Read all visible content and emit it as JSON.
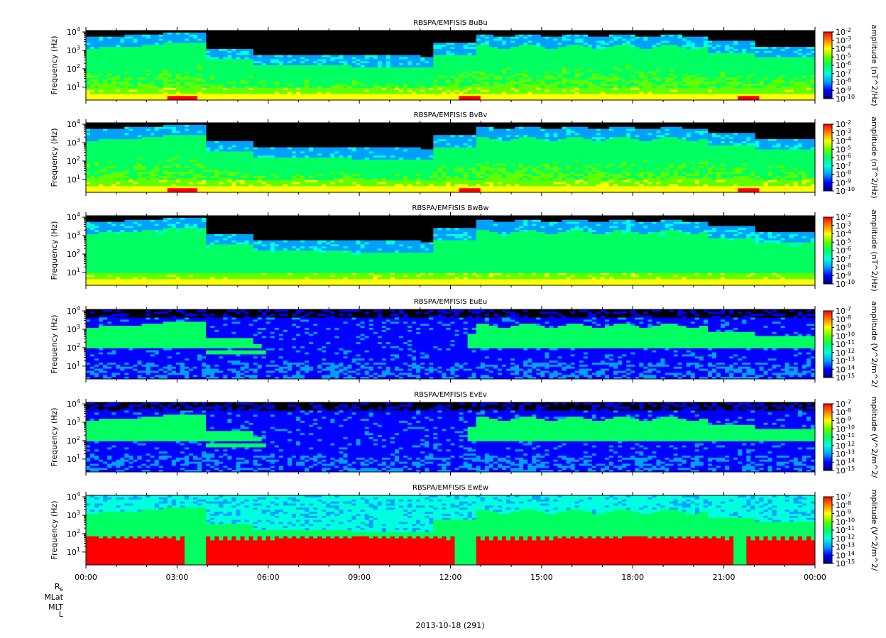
{
  "chart_data": {
    "type": "heatmap",
    "date_label": "2013-10-18 (291)",
    "x": {
      "range": [
        "00:00",
        "24:00"
      ],
      "tick_labels": [
        "00:00",
        "03:00",
        "06:00",
        "09:00",
        "12:00",
        "15:00",
        "18:00",
        "21:00",
        "00:00"
      ]
    },
    "orbit_labels": [
      "R",
      "MLat",
      "MLT",
      "L"
    ],
    "orbit_label_subscript": "E",
    "panels": [
      {
        "title": "RBSPA/EMFISIS  BuBu",
        "ylabel": "Frequency (Hz)",
        "ylim_hz": [
          2,
          12000
        ],
        "yscale": "log",
        "y_ticks": [
          {
            "base": "10",
            "exp": "1"
          },
          {
            "base": "10",
            "exp": "2"
          },
          {
            "base": "10",
            "exp": "3"
          },
          {
            "base": "10",
            "exp": "4"
          }
        ],
        "colorbar_label": "amplitude (nT^2/Hz)",
        "colorbar_range_exp": [
          -10,
          -2
        ],
        "colorbar_ticks": [
          "-2",
          "-3",
          "-4",
          "-5",
          "-6",
          "-7",
          "-8",
          "-9",
          "-10"
        ],
        "kind": "B"
      },
      {
        "title": "RBSPA/EMFISIS  BvBv",
        "ylabel": "Frequency (Hz)",
        "ylim_hz": [
          2,
          12000
        ],
        "yscale": "log",
        "y_ticks": [
          {
            "base": "10",
            "exp": "1"
          },
          {
            "base": "10",
            "exp": "2"
          },
          {
            "base": "10",
            "exp": "3"
          },
          {
            "base": "10",
            "exp": "4"
          }
        ],
        "colorbar_label": "amplitude (nT^2/Hz)",
        "colorbar_range_exp": [
          -10,
          -2
        ],
        "colorbar_ticks": [
          "-2",
          "-3",
          "-4",
          "-5",
          "-6",
          "-7",
          "-8",
          "-9",
          "-10"
        ],
        "kind": "B"
      },
      {
        "title": "RBSPA/EMFISIS  BwBw",
        "ylabel": "Frequency (Hz)",
        "ylim_hz": [
          2,
          12000
        ],
        "yscale": "log",
        "y_ticks": [
          {
            "base": "10",
            "exp": "1"
          },
          {
            "base": "10",
            "exp": "2"
          },
          {
            "base": "10",
            "exp": "3"
          },
          {
            "base": "10",
            "exp": "4"
          }
        ],
        "colorbar_label": "amplitude (nT^2/Hz)",
        "colorbar_range_exp": [
          -10,
          -2
        ],
        "colorbar_ticks": [
          "-2",
          "-3",
          "-4",
          "-5",
          "-6",
          "-7",
          "-8",
          "-9",
          "-10"
        ],
        "kind": "Bw"
      },
      {
        "title": "RBSPA/EMFISIS  EuEu",
        "ylabel": "Frequency (Hz)",
        "ylim_hz": [
          2,
          12000
        ],
        "yscale": "log",
        "y_ticks": [
          {
            "base": "10",
            "exp": "1"
          },
          {
            "base": "10",
            "exp": "2"
          },
          {
            "base": "10",
            "exp": "3"
          },
          {
            "base": "10",
            "exp": "4"
          }
        ],
        "colorbar_label": "amplitude (V^2/m^2/",
        "colorbar_range_exp": [
          -15,
          -7
        ],
        "colorbar_ticks": [
          "-7",
          "-8",
          "-9",
          "-10",
          "-11",
          "-12",
          "-13",
          "-14",
          "-15"
        ],
        "kind": "E"
      },
      {
        "title": "RBSPA/EMFISIS  EvEv",
        "ylabel": "Frequency (Hz)",
        "ylim_hz": [
          2,
          12000
        ],
        "yscale": "log",
        "y_ticks": [
          {
            "base": "10",
            "exp": "1"
          },
          {
            "base": "10",
            "exp": "2"
          },
          {
            "base": "10",
            "exp": "3"
          },
          {
            "base": "10",
            "exp": "4"
          }
        ],
        "colorbar_label": "mplitude (V^2/m^2/",
        "colorbar_range_exp": [
          -15,
          -7
        ],
        "colorbar_ticks": [
          "-7",
          "-8",
          "-9",
          "-10",
          "-11",
          "-12",
          "-13",
          "-14",
          "-15"
        ],
        "kind": "E"
      },
      {
        "title": "RBSPA/EMFISIS  EwEw",
        "ylabel": "Frequency (Hz)",
        "ylim_hz": [
          2,
          12000
        ],
        "yscale": "log",
        "y_ticks": [
          {
            "base": "10",
            "exp": "1"
          },
          {
            "base": "10",
            "exp": "2"
          },
          {
            "base": "10",
            "exp": "3"
          },
          {
            "base": "10",
            "exp": "4"
          }
        ],
        "colorbar_label": "mplitude (V^2/m^2/",
        "colorbar_range_exp": [
          -15,
          -7
        ],
        "colorbar_ticks": [
          "-7",
          "-8",
          "-9",
          "-10",
          "-11",
          "-12",
          "-13",
          "-14",
          "-15"
        ],
        "kind": "Ew"
      }
    ],
    "colormap": [
      "#000080",
      "#0000ff",
      "#00a0ff",
      "#00ffe0",
      "#00ff60",
      "#60ff00",
      "#ffff00",
      "#ff8000",
      "#ff0000"
    ],
    "background_color": "#000000"
  }
}
